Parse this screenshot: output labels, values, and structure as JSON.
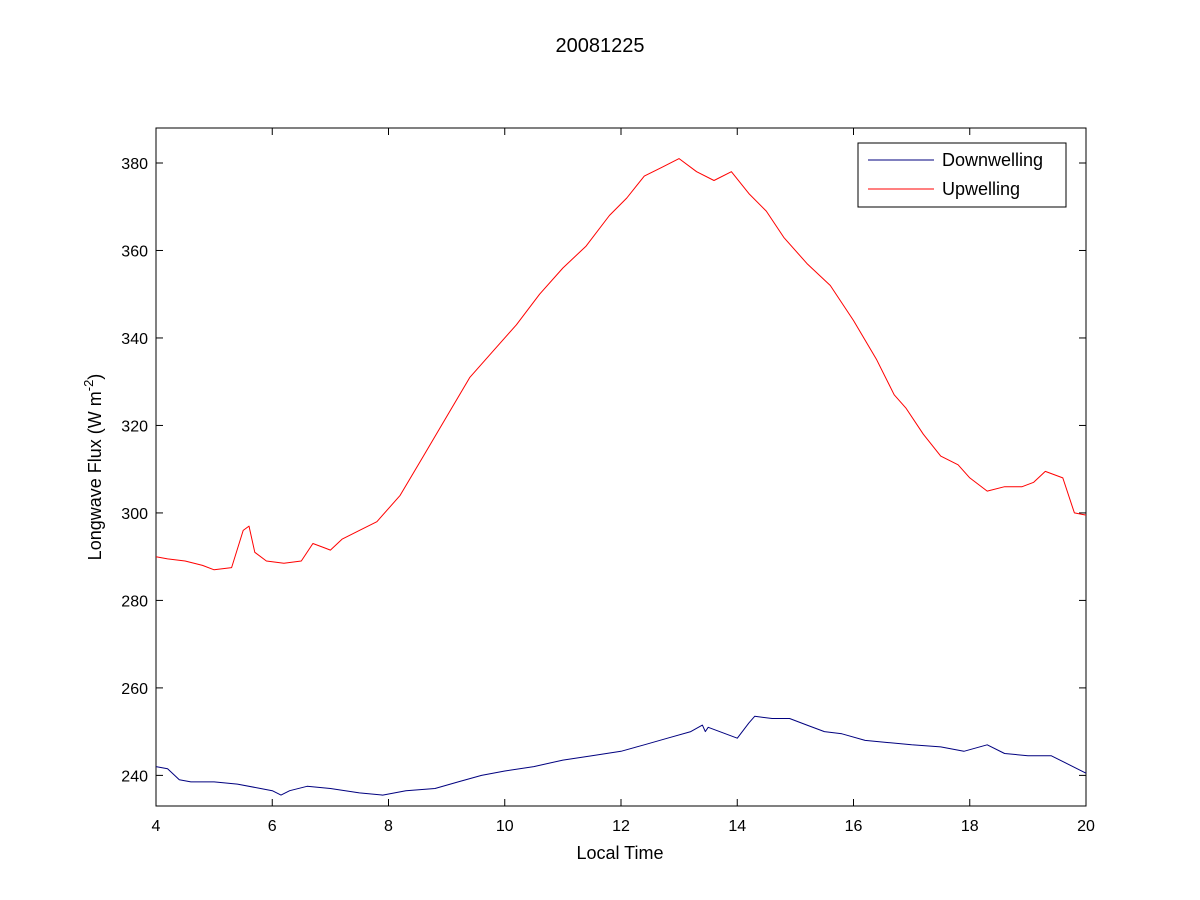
{
  "chart_data": {
    "type": "line",
    "title": "20081225",
    "xlabel": "Local Time",
    "ylabel": {
      "main": "Longwave Flux (W m",
      "superscript": "-2",
      "close": ")"
    },
    "xlim": [
      4,
      20
    ],
    "ylim": [
      233,
      388
    ],
    "xticks": [
      4,
      6,
      8,
      10,
      12,
      14,
      16,
      18,
      20
    ],
    "yticks": [
      240,
      260,
      280,
      300,
      320,
      340,
      360,
      380
    ],
    "grid": false,
    "legend_placement": "top-right",
    "series": [
      {
        "name": "Downwelling",
        "color": "#00007f",
        "x": [
          4.0,
          4.2,
          4.4,
          4.6,
          5.0,
          5.4,
          5.8,
          6.0,
          6.15,
          6.3,
          6.6,
          7.0,
          7.5,
          7.9,
          8.3,
          8.8,
          9.2,
          9.6,
          10.0,
          10.5,
          11.0,
          11.5,
          12.0,
          12.4,
          12.8,
          13.2,
          13.4,
          13.45,
          13.5,
          13.8,
          14.0,
          14.2,
          14.3,
          14.6,
          14.9,
          15.2,
          15.5,
          15.8,
          16.2,
          16.6,
          17.0,
          17.5,
          17.9,
          18.3,
          18.6,
          19.0,
          19.4,
          19.7,
          20.0
        ],
        "y": [
          242.0,
          241.5,
          239.0,
          238.5,
          238.5,
          238.0,
          237.0,
          236.5,
          235.5,
          236.5,
          237.5,
          237.0,
          236.0,
          235.5,
          236.5,
          237.0,
          238.5,
          240.0,
          241.0,
          242.0,
          243.5,
          244.5,
          245.5,
          247.0,
          248.5,
          250.0,
          251.5,
          250.0,
          251.0,
          249.5,
          248.5,
          252.0,
          253.5,
          253.0,
          253.0,
          251.5,
          250.0,
          249.5,
          248.0,
          247.5,
          247.0,
          246.5,
          245.5,
          247.0,
          245.0,
          244.5,
          244.5,
          242.5,
          240.5
        ]
      },
      {
        "name": "Upwelling",
        "color": "#ff0000",
        "x": [
          4.0,
          4.2,
          4.5,
          4.8,
          5.0,
          5.3,
          5.5,
          5.6,
          5.7,
          5.9,
          6.2,
          6.5,
          6.7,
          6.9,
          7.0,
          7.2,
          7.5,
          7.8,
          8.2,
          8.6,
          9.0,
          9.4,
          9.8,
          10.2,
          10.6,
          11.0,
          11.4,
          11.8,
          12.1,
          12.4,
          12.7,
          13.0,
          13.3,
          13.6,
          13.9,
          14.2,
          14.5,
          14.8,
          15.2,
          15.6,
          16.0,
          16.4,
          16.7,
          16.9,
          17.2,
          17.5,
          17.8,
          18.0,
          18.3,
          18.6,
          18.9,
          19.1,
          19.3,
          19.6,
          19.8,
          20.0
        ],
        "y": [
          290.0,
          289.5,
          289.0,
          288.0,
          287.0,
          287.5,
          296.0,
          297.0,
          291.0,
          289.0,
          288.5,
          289.0,
          293.0,
          292.0,
          291.5,
          294.0,
          296.0,
          298.0,
          304.0,
          313.0,
          322.0,
          331.0,
          337.0,
          343.0,
          350.0,
          356.0,
          361.0,
          368.0,
          372.0,
          377.0,
          379.0,
          381.0,
          378.0,
          376.0,
          378.0,
          373.0,
          369.0,
          363.0,
          357.0,
          352.0,
          344.0,
          335.0,
          327.0,
          324.0,
          318.0,
          313.0,
          311.0,
          308.0,
          305.0,
          306.0,
          306.0,
          307.0,
          309.5,
          308.0,
          300.0,
          299.5
        ]
      }
    ]
  }
}
